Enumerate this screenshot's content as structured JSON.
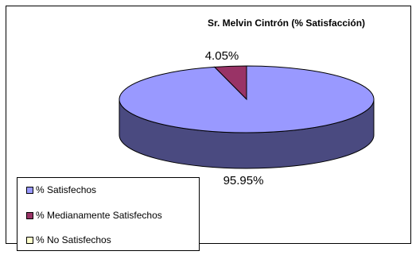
{
  "chart_data": {
    "type": "pie",
    "title": "Sr. Melvin Cintrón  (% Satisfacción)",
    "series": [
      {
        "name": "% Satisfechos",
        "value": 95.95,
        "label": "95.95%",
        "color": "#9999ff",
        "side_color": "#4a4a80"
      },
      {
        "name": "% Medianamente Satisfechos",
        "value": 4.05,
        "label": "4.05%",
        "color": "#993366",
        "side_color": "#4d1a33"
      },
      {
        "name": "% No Satisfechos",
        "value": 0,
        "label": "",
        "color": "#ffffcc",
        "side_color": "#808066"
      }
    ],
    "legend_position": "bottom-left",
    "style": "3d-pie"
  }
}
